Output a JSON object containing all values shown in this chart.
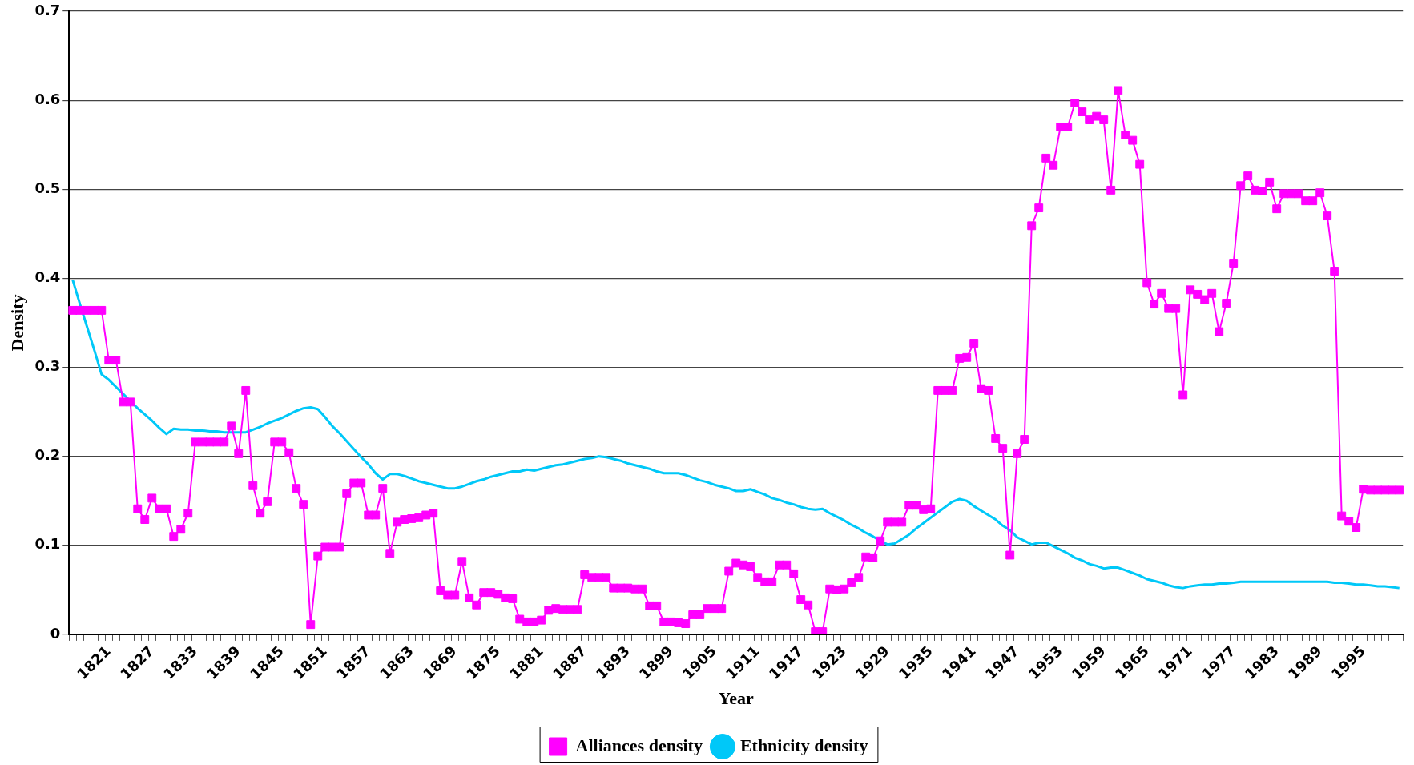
{
  "chart_data": {
    "type": "line",
    "xlabel": "Year",
    "ylabel": "Density",
    "categories": [
      null,
      null,
      null,
      null,
      null,
      "1821",
      null,
      null,
      null,
      null,
      null,
      "1827",
      null,
      null,
      null,
      null,
      null,
      "1833",
      null,
      null,
      null,
      null,
      null,
      "1839",
      null,
      null,
      null,
      null,
      null,
      "1845",
      null,
      null,
      null,
      null,
      null,
      "1851",
      null,
      null,
      null,
      null,
      null,
      "1857",
      null,
      null,
      null,
      null,
      null,
      "1863",
      null,
      null,
      null,
      null,
      null,
      "1869",
      null,
      null,
      null,
      null,
      null,
      "1875",
      null,
      null,
      null,
      null,
      null,
      "1881",
      null,
      null,
      null,
      null,
      null,
      "1887",
      null,
      null,
      null,
      null,
      null,
      "1893",
      null,
      null,
      null,
      null,
      null,
      "1899",
      null,
      null,
      null,
      null,
      null,
      "1905",
      null,
      null,
      null,
      null,
      null,
      "1911",
      null,
      null,
      null,
      null,
      null,
      "1917",
      null,
      null,
      null,
      null,
      null,
      "1923",
      null,
      null,
      null,
      null,
      null,
      "1929",
      null,
      null,
      null,
      null,
      null,
      "1935",
      null,
      null,
      null,
      null,
      null,
      "1941",
      null,
      null,
      null,
      null,
      null,
      "1947",
      null,
      null,
      null,
      null,
      null,
      "1953",
      null,
      null,
      null,
      null,
      null,
      "1959",
      null,
      null,
      null,
      null,
      null,
      "1965",
      null,
      null,
      null,
      null,
      null,
      "1971",
      null,
      null,
      null,
      null,
      null,
      "1977",
      null,
      null,
      null,
      null,
      null,
      "1983",
      null,
      null,
      null,
      null,
      null,
      "1989",
      null,
      null,
      null,
      null,
      null,
      "1995",
      null,
      null,
      null,
      null,
      null
    ],
    "series": [
      {
        "name": "Alliances density",
        "color": "#ff00ff",
        "marker": "square",
        "values": [
          0.364,
          0.364,
          0.364,
          0.364,
          0.364,
          0.308,
          0.308,
          0.261,
          0.261,
          0.141,
          0.129,
          0.153,
          0.141,
          0.141,
          0.11,
          0.118,
          0.136,
          0.216,
          0.216,
          0.216,
          0.216,
          0.216,
          0.234,
          0.203,
          0.274,
          0.167,
          0.136,
          0.149,
          0.216,
          0.216,
          0.204,
          0.164,
          0.146,
          0.011,
          0.088,
          0.098,
          0.098,
          0.098,
          0.158,
          0.17,
          0.17,
          0.134,
          0.134,
          0.164,
          0.091,
          0.126,
          0.129,
          0.13,
          0.131,
          0.134,
          0.136,
          0.049,
          0.044,
          0.044,
          0.082,
          0.041,
          0.033,
          0.047,
          0.047,
          0.045,
          0.041,
          0.04,
          0.017,
          0.014,
          0.014,
          0.016,
          0.027,
          0.029,
          0.028,
          0.028,
          0.028,
          0.067,
          0.064,
          0.064,
          0.064,
          0.052,
          0.052,
          0.052,
          0.051,
          0.051,
          0.032,
          0.032,
          0.014,
          0.014,
          0.013,
          0.012,
          0.022,
          0.022,
          0.029,
          0.029,
          0.029,
          0.071,
          0.08,
          0.078,
          0.076,
          0.064,
          0.059,
          0.059,
          0.078,
          0.078,
          0.068,
          0.039,
          0.033,
          0.003,
          0.003,
          0.051,
          0.05,
          0.051,
          0.058,
          0.064,
          0.087,
          0.086,
          0.105,
          0.126,
          0.126,
          0.126,
          0.145,
          0.145,
          0.14,
          0.141,
          0.274,
          0.274,
          0.274,
          0.31,
          0.311,
          0.327,
          0.276,
          0.274,
          0.22,
          0.209,
          0.089,
          0.203,
          0.219,
          0.459,
          0.479,
          0.535,
          0.527,
          0.57,
          0.57,
          0.597,
          0.587,
          0.578,
          0.582,
          0.578,
          0.499,
          0.611,
          0.561,
          0.555,
          0.528,
          0.395,
          0.371,
          0.383,
          0.366,
          0.366,
          0.269,
          0.387,
          0.382,
          0.376,
          0.383,
          0.34,
          0.372,
          0.417,
          0.504,
          0.515,
          0.499,
          0.498,
          0.508,
          0.478,
          0.495,
          0.495,
          0.495,
          0.487,
          0.487,
          0.496,
          0.47,
          0.408,
          0.133,
          0.127,
          0.12,
          0.163,
          0.162,
          0.162,
          0.162,
          0.162,
          0.162
        ]
      },
      {
        "name": "Ethnicity density",
        "color": "#00c8f8",
        "values": [
          0.398,
          0.371,
          0.345,
          0.319,
          0.292,
          0.286,
          0.278,
          0.27,
          0.262,
          0.254,
          0.247,
          0.24,
          0.232,
          0.225,
          0.231,
          0.23,
          0.23,
          0.229,
          0.229,
          0.228,
          0.228,
          0.227,
          0.227,
          0.227,
          0.227,
          0.23,
          0.233,
          0.237,
          0.24,
          0.243,
          0.247,
          0.251,
          0.254,
          0.255,
          0.253,
          0.244,
          0.234,
          0.226,
          0.217,
          0.208,
          0.199,
          0.191,
          0.181,
          0.174,
          0.18,
          0.18,
          0.178,
          0.175,
          0.172,
          0.17,
          0.168,
          0.166,
          0.164,
          0.164,
          0.166,
          0.169,
          0.172,
          0.174,
          0.177,
          0.179,
          0.181,
          0.183,
          0.183,
          0.185,
          0.184,
          0.186,
          0.188,
          0.19,
          0.191,
          0.193,
          0.195,
          0.197,
          0.198,
          0.2,
          0.199,
          0.197,
          0.195,
          0.192,
          0.19,
          0.188,
          0.186,
          0.183,
          0.181,
          0.181,
          0.181,
          0.179,
          0.176,
          0.173,
          0.171,
          0.168,
          0.166,
          0.164,
          0.161,
          0.161,
          0.163,
          0.16,
          0.157,
          0.153,
          0.151,
          0.148,
          0.146,
          0.143,
          0.141,
          0.14,
          0.141,
          0.136,
          0.132,
          0.128,
          0.123,
          0.119,
          0.114,
          0.11,
          0.105,
          0.101,
          0.102,
          0.107,
          0.112,
          0.119,
          0.125,
          0.131,
          0.137,
          0.143,
          0.149,
          0.152,
          0.15,
          0.144,
          0.139,
          0.134,
          0.129,
          0.122,
          0.117,
          0.109,
          0.105,
          0.101,
          0.103,
          0.103,
          0.099,
          0.095,
          0.091,
          0.086,
          0.083,
          0.079,
          0.077,
          0.074,
          0.075,
          0.075,
          0.072,
          0.069,
          0.066,
          0.062,
          0.06,
          0.058,
          0.055,
          0.053,
          0.052,
          0.054,
          0.055,
          0.056,
          0.056,
          0.057,
          0.057,
          0.058,
          0.059,
          0.059,
          0.059,
          0.059,
          0.059,
          0.059,
          0.059,
          0.059,
          0.059,
          0.059,
          0.059,
          0.059,
          0.059,
          0.058,
          0.058,
          0.057,
          0.056,
          0.056,
          0.055,
          0.054,
          0.054,
          0.053,
          0.052
        ]
      }
    ],
    "ylim": [
      0,
      0.7
    ],
    "yticks": [
      0,
      0.1,
      0.2,
      0.3,
      0.4,
      0.5,
      0.6,
      0.7
    ],
    "grid": "y",
    "legend": "bottom"
  }
}
